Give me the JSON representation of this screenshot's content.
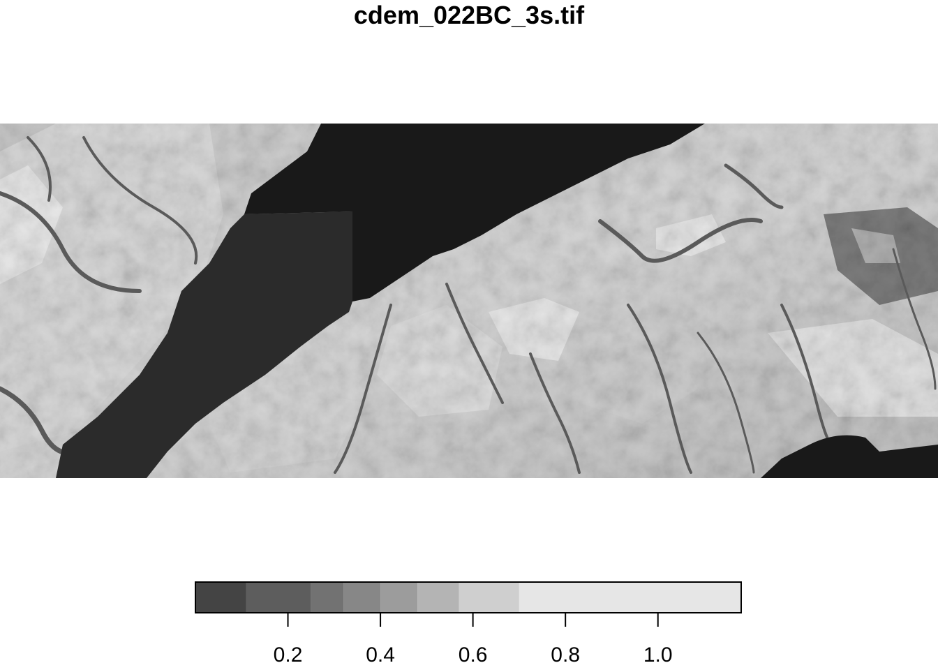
{
  "title": "cdem_022BC_3s.tif",
  "raster": {
    "description_colors": {
      "sea_dark": "#191919",
      "sea_mid": "#2b2b2b",
      "lowland": "#6e6e6e",
      "mid": "#a6a6a6",
      "upland": "#d0d0d0",
      "highland": "#e6e6e6"
    }
  },
  "legend": {
    "bins": [
      {
        "from": 0.0,
        "to": 0.11,
        "color": "#444444"
      },
      {
        "from": 0.11,
        "to": 0.25,
        "color": "#5d5d5d"
      },
      {
        "from": 0.25,
        "to": 0.32,
        "color": "#727272"
      },
      {
        "from": 0.32,
        "to": 0.4,
        "color": "#878787"
      },
      {
        "from": 0.4,
        "to": 0.48,
        "color": "#9c9c9c"
      },
      {
        "from": 0.48,
        "to": 0.57,
        "color": "#b4b4b4"
      },
      {
        "from": 0.57,
        "to": 0.7,
        "color": "#cfcfcf"
      },
      {
        "from": 0.7,
        "to": 1.18,
        "color": "#e6e6e6"
      }
    ],
    "range": [
      0.0,
      1.18
    ],
    "ticks": [
      {
        "value": 0.2,
        "label": "0.2"
      },
      {
        "value": 0.4,
        "label": "0.4"
      },
      {
        "value": 0.6,
        "label": "0.6"
      },
      {
        "value": 0.8,
        "label": "0.8"
      },
      {
        "value": 1.0,
        "label": "1.0"
      }
    ]
  }
}
